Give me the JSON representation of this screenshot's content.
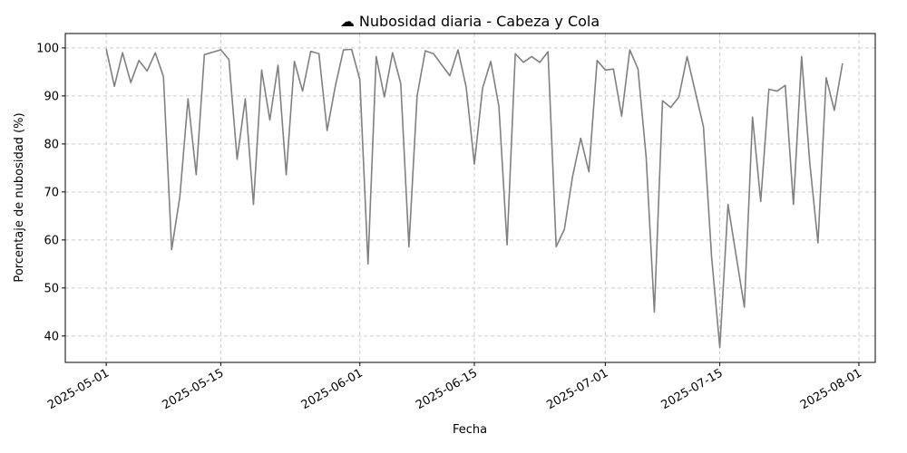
{
  "chart_data": {
    "type": "line",
    "title": "☁ Nubosidad diaria - Cabeza y Cola",
    "xlabel": "Fecha",
    "ylabel": "Porcentaje de nubosidad (%)",
    "xlim": [
      "2025-04-26",
      "2025-08-03"
    ],
    "ylim": [
      34.5,
      103
    ],
    "x_ticks": [
      "2025-05-01",
      "2025-05-15",
      "2025-06-01",
      "2025-06-15",
      "2025-07-01",
      "2025-07-15",
      "2025-08-01"
    ],
    "y_ticks": [
      40,
      50,
      60,
      70,
      80,
      90,
      100
    ],
    "grid": true,
    "line_color": "#808080",
    "x": [
      "2025-05-01",
      "2025-05-02",
      "2025-05-03",
      "2025-05-04",
      "2025-05-05",
      "2025-05-06",
      "2025-05-07",
      "2025-05-08",
      "2025-05-09",
      "2025-05-10",
      "2025-05-11",
      "2025-05-12",
      "2025-05-13",
      "2025-05-15",
      "2025-05-16",
      "2025-05-17",
      "2025-05-18",
      "2025-05-19",
      "2025-05-20",
      "2025-05-21",
      "2025-05-22",
      "2025-05-23",
      "2025-05-24",
      "2025-05-25",
      "2025-05-26",
      "2025-05-27",
      "2025-05-28",
      "2025-05-29",
      "2025-05-30",
      "2025-05-31",
      "2025-06-01",
      "2025-06-02",
      "2025-06-03",
      "2025-06-04",
      "2025-06-05",
      "2025-06-06",
      "2025-06-07",
      "2025-06-08",
      "2025-06-09",
      "2025-06-10",
      "2025-06-12",
      "2025-06-13",
      "2025-06-14",
      "2025-06-15",
      "2025-06-16",
      "2025-06-17",
      "2025-06-18",
      "2025-06-19",
      "2025-06-20",
      "2025-06-21",
      "2025-06-22",
      "2025-06-23",
      "2025-06-24",
      "2025-06-25",
      "2025-06-26",
      "2025-06-27",
      "2025-06-28",
      "2025-06-29",
      "2025-06-30",
      "2025-07-01",
      "2025-07-02",
      "2025-07-03",
      "2025-07-04",
      "2025-07-05",
      "2025-07-06",
      "2025-07-07",
      "2025-07-08",
      "2025-07-09",
      "2025-07-10",
      "2025-07-11",
      "2025-07-13",
      "2025-07-14",
      "2025-07-15",
      "2025-07-16",
      "2025-07-18",
      "2025-07-19",
      "2025-07-20",
      "2025-07-21",
      "2025-07-22",
      "2025-07-23",
      "2025-07-24",
      "2025-07-25",
      "2025-07-26",
      "2025-07-27",
      "2025-07-28",
      "2025-07-29",
      "2025-07-30"
    ],
    "series": [
      {
        "values": [
          99.8,
          92.0,
          99.0,
          92.8,
          97.4,
          95.2,
          99.0,
          94.0,
          58.0,
          69.0,
          89.4,
          73.6,
          98.6,
          99.6,
          97.6,
          76.8,
          89.4,
          67.4,
          95.4,
          85.0,
          96.4,
          73.6,
          97.2,
          91.0,
          99.3,
          98.8,
          82.8,
          92.0,
          99.6,
          99.7,
          93.4,
          55.0,
          98.2,
          89.8,
          99.0,
          92.6,
          58.6,
          90.0,
          99.4,
          98.8,
          94.2,
          99.6,
          91.8,
          75.8,
          91.6,
          97.2,
          87.8,
          59.0,
          98.8,
          97.0,
          98.2,
          97.0,
          99.2,
          58.6,
          62.2,
          73.2,
          81.2,
          74.2,
          97.4,
          95.4,
          95.6,
          85.8,
          99.6,
          95.6,
          77.2,
          45.0,
          89.0,
          87.6,
          89.8,
          98.2,
          83.6,
          56.4,
          37.6,
          67.4,
          46.0,
          85.6,
          68.0,
          91.4,
          91.0,
          92.2,
          67.4,
          98.2,
          76.0,
          59.4,
          93.8,
          87.0,
          96.8
        ]
      }
    ]
  }
}
